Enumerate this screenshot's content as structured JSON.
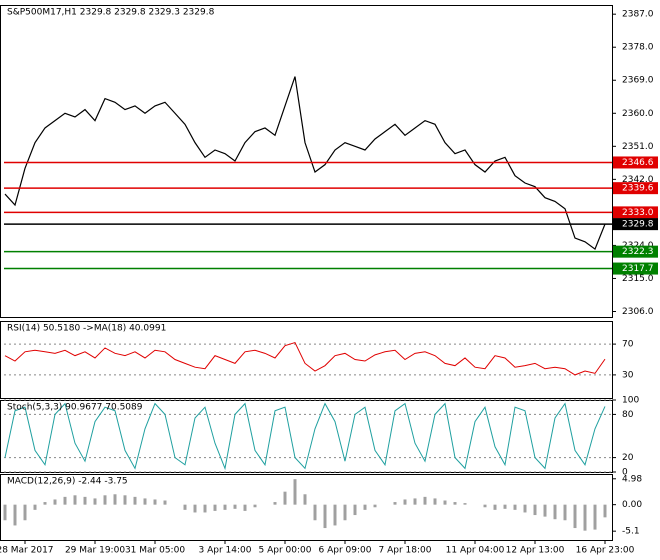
{
  "chart_data": [
    {
      "type": "line",
      "title": "S&P500M17,H1  2329.8 2329.8 2329.3 2329.8",
      "categories": [
        null,
        null,
        "28 Mar 2017",
        null,
        null,
        null,
        null,
        null,
        null,
        "29 Mar 19:00",
        null,
        null,
        null,
        null,
        null,
        "31 Mar 05:00",
        null,
        null,
        null,
        null,
        null,
        null,
        "3 Apr 14:00",
        null,
        null,
        null,
        null,
        null,
        "5 Apr 00:00",
        null,
        null,
        null,
        null,
        null,
        "6 Apr 09:00",
        null,
        null,
        null,
        null,
        null,
        "7 Apr 18:00",
        null,
        null,
        null,
        null,
        null,
        null,
        "11 Apr 04:00",
        null,
        null,
        null,
        null,
        null,
        "12 Apr 13:00",
        null,
        null,
        null,
        null,
        null,
        null,
        "16 Apr 23:00"
      ],
      "series": [
        {
          "color": "#000000",
          "values": [
            2338,
            2335,
            2345,
            2352,
            2356,
            2358,
            2360,
            2359,
            2361,
            2358,
            2364,
            2363,
            2361,
            2362,
            2360,
            2362,
            2363,
            2360,
            2357,
            2352,
            2348,
            2350,
            2349,
            2347,
            2352,
            2355,
            2356,
            2354,
            2362,
            2370,
            2352,
            2344,
            2346,
            2350,
            2352,
            2351,
            2350,
            2353,
            2355,
            2357,
            2354,
            2356,
            2358,
            2357,
            2352,
            2349,
            2350,
            2346,
            2344,
            2347,
            2348,
            2343,
            2341,
            2340,
            2337,
            2336,
            2334,
            2326,
            2325,
            2323,
            2329.8
          ]
        }
      ],
      "ylim": [
        2304.5,
        2389.5
      ],
      "yticks": [
        {
          "value": 2387,
          "label": "2387.0"
        },
        {
          "value": 2378,
          "label": "2378.0"
        },
        {
          "value": 2369,
          "label": "2369.0"
        },
        {
          "value": 2360,
          "label": "2360.0"
        },
        {
          "value": 2351,
          "label": "2351.0"
        },
        {
          "value": 2342,
          "label": "2342.0"
        },
        {
          "value": 2324,
          "label": "2324.0"
        },
        {
          "value": 2315,
          "label": "2315.0"
        },
        {
          "value": 2306,
          "label": "2306.0"
        }
      ],
      "levels": [
        {
          "value": 2346.6,
          "label": "2346.6",
          "color": "#e00000"
        },
        {
          "value": 2339.6,
          "label": "2339.6",
          "color": "#e00000"
        },
        {
          "value": 2333,
          "label": "2333.0",
          "color": "#e00000"
        },
        {
          "value": 2329.8,
          "label": "2329.8",
          "color": "#000000"
        },
        {
          "value": 2322.3,
          "label": "2322.3",
          "color": "#008000"
        },
        {
          "value": 2317.7,
          "label": "2317.7",
          "color": "#008000"
        }
      ]
    },
    {
      "type": "line",
      "title": "RSI(14) 50.5180  ->MA(18) 40.0991",
      "color": "#e00000",
      "values": [
        55,
        48,
        60,
        62,
        60,
        58,
        62,
        55,
        60,
        52,
        65,
        58,
        55,
        60,
        52,
        62,
        60,
        50,
        45,
        40,
        38,
        55,
        50,
        45,
        60,
        62,
        58,
        52,
        68,
        72,
        45,
        35,
        42,
        55,
        58,
        50,
        48,
        56,
        60,
        62,
        50,
        58,
        60,
        55,
        45,
        42,
        52,
        40,
        38,
        55,
        52,
        40,
        42,
        45,
        38,
        40,
        38,
        30,
        35,
        32,
        50.5
      ],
      "ylim": [
        0,
        100
      ],
      "yticks": [
        30,
        70
      ]
    },
    {
      "type": "line",
      "title": "Stoch(5,3,3) 90.9677 70.5089",
      "color": "#20a0a0",
      "values": [
        20,
        85,
        90,
        30,
        10,
        80,
        95,
        40,
        15,
        70,
        90,
        85,
        30,
        5,
        60,
        95,
        80,
        20,
        10,
        75,
        90,
        40,
        5,
        80,
        95,
        30,
        10,
        85,
        90,
        20,
        5,
        60,
        95,
        70,
        15,
        80,
        90,
        30,
        10,
        85,
        95,
        40,
        15,
        80,
        95,
        20,
        5,
        70,
        90,
        35,
        10,
        90,
        85,
        20,
        5,
        75,
        95,
        30,
        10,
        60,
        91
      ],
      "ylim": [
        0,
        100
      ],
      "yticks": [
        0,
        20,
        80,
        100
      ]
    },
    {
      "type": "bar",
      "title": "MACD(12,26,9) -2.44 -3.75",
      "color": "#a0a0a0",
      "values": [
        -3,
        -4,
        -3,
        -1,
        0.5,
        1,
        1.5,
        1.8,
        1.5,
        1.2,
        1.8,
        2,
        1.8,
        1.5,
        1.2,
        1,
        0.8,
        0,
        -1,
        -1.5,
        -1.5,
        -1.2,
        -1,
        -0.8,
        -1.2,
        -0.5,
        0,
        0.5,
        2.5,
        4.9,
        2,
        -3,
        -4.5,
        -4,
        -3,
        -2,
        -1,
        -0.5,
        0,
        0.5,
        1,
        1.2,
        1.5,
        1.2,
        0.8,
        0.5,
        0.3,
        0,
        -0.5,
        -1,
        -0.8,
        -1,
        -1.5,
        -2,
        -2.3,
        -2.8,
        -3,
        -4.5,
        -5,
        -4.8,
        -2.44
      ],
      "ylim": [
        -6.8,
        5.9
      ],
      "yticks": [
        {
          "value": 4.98,
          "label": "4.98"
        },
        {
          "value": 0,
          "label": "0.00"
        },
        {
          "value": -5.1,
          "label": "-5.1"
        }
      ]
    }
  ]
}
